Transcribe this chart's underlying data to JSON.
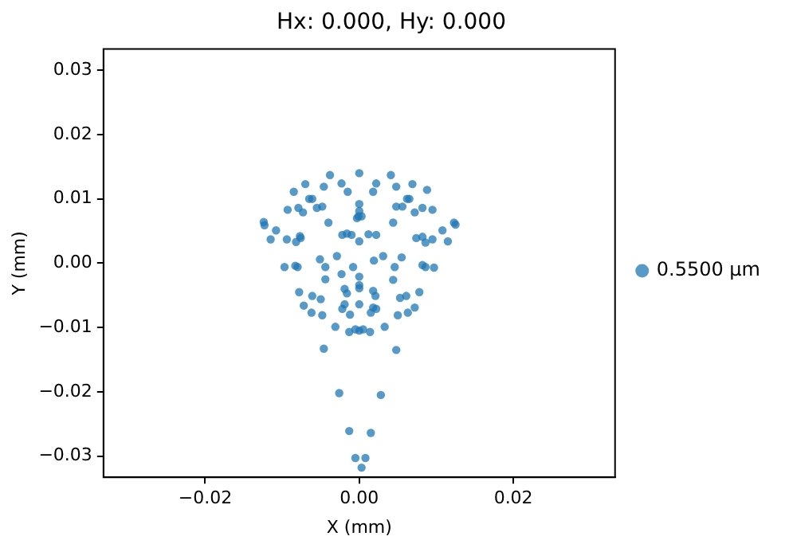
{
  "chart_data": {
    "type": "scatter",
    "title": "Hx: 0.000, Hy: 0.000",
    "xlabel": "X (mm)",
    "ylabel": "Y (mm)",
    "xlim": [
      -0.0332,
      0.0332
    ],
    "ylim": [
      -0.0333,
      0.0333
    ],
    "xticks": [
      {
        "value": -0.02,
        "label": "−0.02"
      },
      {
        "value": 0,
        "label": "0.00"
      },
      {
        "value": 0.02,
        "label": "0.02"
      }
    ],
    "yticks": [
      {
        "value": -0.03,
        "label": "−0.03"
      },
      {
        "value": -0.02,
        "label": "−0.02"
      },
      {
        "value": -0.01,
        "label": "−0.01"
      },
      {
        "value": 0,
        "label": "0.00"
      },
      {
        "value": 0.01,
        "label": "0.01"
      },
      {
        "value": 0.02,
        "label": "0.02"
      },
      {
        "value": 0.03,
        "label": "0.03"
      }
    ],
    "grid": false,
    "legend": "right",
    "marker": "circle",
    "series": [
      {
        "name": "0.5500 µm",
        "color": "#1f77b4",
        "x": [
          -0.0038,
          0,
          0.0041,
          -0.007,
          -0.0023,
          0.0022,
          0.0069,
          -0.0085,
          -0.0046,
          -0.0015,
          0.0018,
          0.0048,
          0.0088,
          -0.0065,
          -0.0061,
          0.0062,
          0.0065,
          -0.0093,
          -0.0079,
          -0.0073,
          -0.0055,
          -0.0048,
          0,
          0,
          -0.0001,
          -0.0003,
          0.0003,
          0.0048,
          0.0056,
          0.0072,
          0.0082,
          0.0095,
          -0.0124,
          -0.0123,
          -0.0108,
          -0.004,
          0.0044,
          0.0108,
          0.0123,
          0.0125,
          -0.0115,
          -0.0094,
          -0.0082,
          -0.0077,
          -0.0076,
          -0.0022,
          -0.0016,
          -0.001,
          0,
          0.0012,
          0.0022,
          0.0074,
          0.0082,
          0.0086,
          0.0095,
          0.0115,
          -0.0097,
          -0.0083,
          -0.008,
          -0.0051,
          -0.0044,
          -0.0029,
          -0.0023,
          -0.0008,
          0,
          0.0019,
          0.0031,
          0.0046,
          0.0055,
          0.0044,
          0.0082,
          0.0086,
          0.0097,
          -0.0044,
          -0.0078,
          -0.0061,
          -0.005,
          -0.0019,
          -0.0016,
          0,
          0,
          0.0018,
          0.0021,
          0.0053,
          0.0061,
          0.0078,
          -0.0072,
          -0.0062,
          -0.0048,
          -0.0022,
          -0.0019,
          -0.0012,
          0,
          0.0015,
          0.0018,
          0.0022,
          0.005,
          0.0063,
          0.0072,
          -0.0031,
          -0.0013,
          -0.0005,
          0,
          0.0005,
          0.0014,
          0.0033,
          -0.0046,
          0.0048,
          -0.0026,
          0.0028,
          -0.0013,
          0.0015,
          -0.0005,
          0.0008,
          0.0003
        ],
        "values": [
          0.0137,
          0.014,
          0.0137,
          0.0123,
          0.0124,
          0.0124,
          0.0123,
          0.0111,
          0.0119,
          0.0111,
          0.0111,
          0.0119,
          0.0114,
          0.01,
          0.01,
          0.01,
          0.01,
          0.0083,
          0.0086,
          0.0079,
          0.0086,
          0.0088,
          0.0092,
          0.0081,
          0.0073,
          0.007,
          0.0073,
          0.0088,
          0.0088,
          0.0079,
          0.0086,
          0.0083,
          0.0064,
          0.0059,
          0.0051,
          0.0063,
          0.0063,
          0.0051,
          0.0063,
          0.006,
          0.0037,
          0.0037,
          0.0033,
          0.0042,
          0.0039,
          0.0044,
          0.0046,
          0.0044,
          0.0034,
          0.0045,
          0.0044,
          0.0039,
          0.0041,
          0.0032,
          0.0037,
          0.0034,
          -0.0006,
          -0.0004,
          -0.0006,
          0.0006,
          -0.0006,
          0.0011,
          -0.0017,
          -0.0006,
          -0.0021,
          0.0004,
          0.0011,
          -0.0006,
          0.0009,
          -0.0026,
          -0.0003,
          -0.0006,
          -0.0007,
          -0.0025,
          -0.0045,
          -0.0051,
          -0.0056,
          -0.004,
          -0.0047,
          -0.0034,
          -0.0039,
          -0.0043,
          -0.0051,
          -0.0054,
          -0.0051,
          -0.0045,
          -0.0066,
          -0.0077,
          -0.0081,
          -0.0071,
          -0.0064,
          -0.008,
          -0.0064,
          -0.0077,
          -0.0069,
          -0.0071,
          -0.0081,
          -0.0077,
          -0.0069,
          -0.0099,
          -0.0107,
          -0.0103,
          -0.0105,
          -0.0103,
          -0.0107,
          -0.0099,
          -0.0133,
          -0.0135,
          -0.0202,
          -0.0205,
          -0.0261,
          -0.0264,
          -0.0303,
          -0.0303,
          -0.0318
        ]
      }
    ]
  }
}
